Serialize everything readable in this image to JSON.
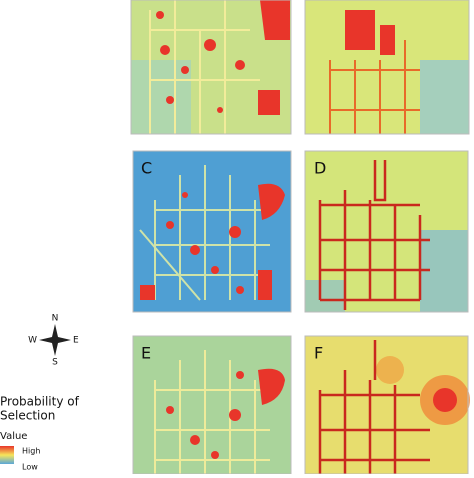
{
  "panels": [
    {
      "label": "C"
    },
    {
      "label": "D"
    },
    {
      "label": "E"
    },
    {
      "label": "F"
    }
  ],
  "compass": {
    "north": "N",
    "south": "S",
    "east": "E",
    "west": "W"
  },
  "legend": {
    "title_line1": "Probability of",
    "title_line2": "Selection",
    "subtitle": "Value",
    "high": "High",
    "low": "Low"
  }
}
